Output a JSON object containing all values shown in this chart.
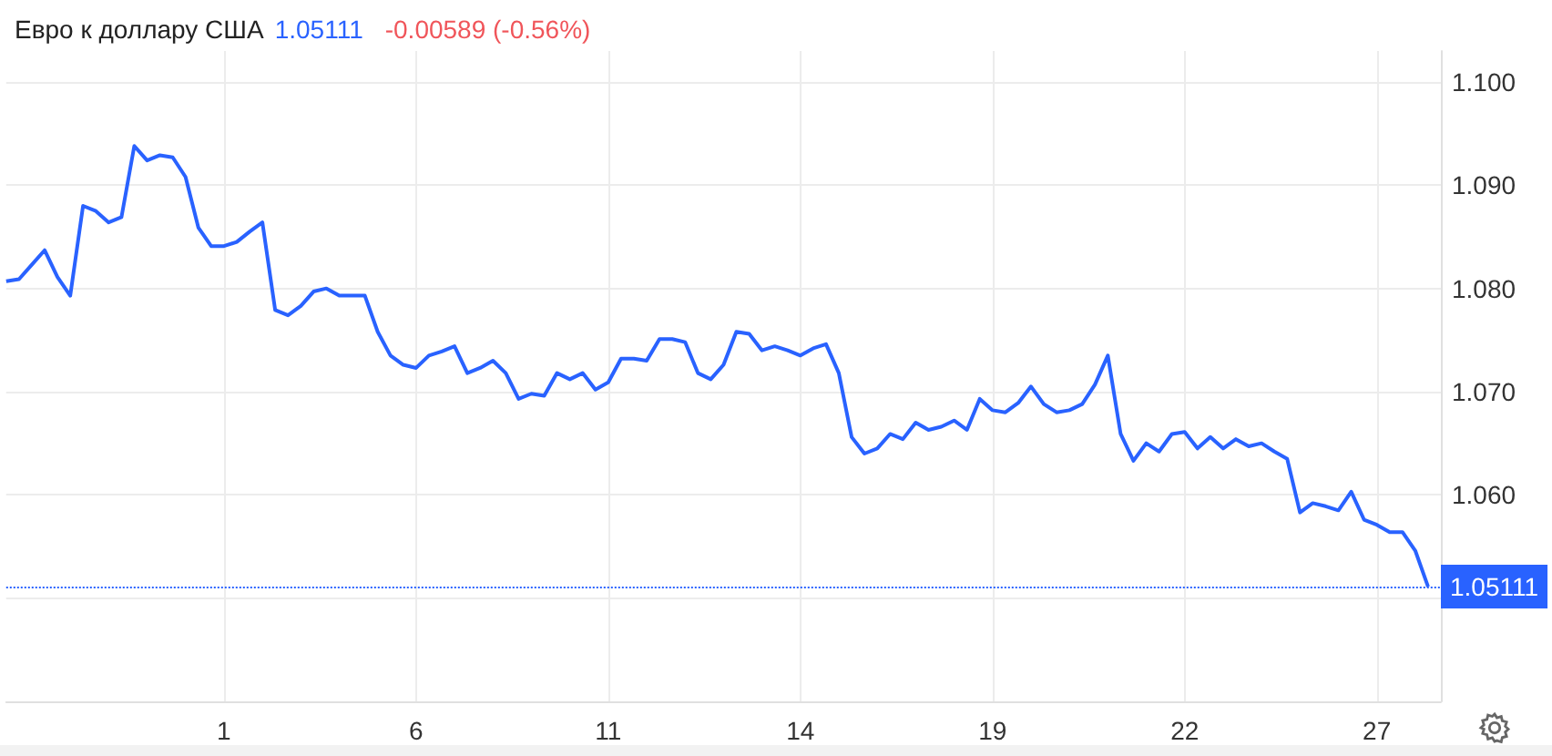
{
  "chart_data": {
    "type": "line",
    "title": "Евро к доллару США",
    "annotations": [
      "1.05111",
      "-0.00589 (-0.56%)"
    ],
    "categories": [
      null,
      null,
      null,
      null,
      null,
      null,
      null,
      null,
      null,
      null,
      null,
      null,
      null,
      null,
      null,
      null,
      null,
      "1",
      null,
      null,
      null,
      null,
      null,
      null,
      null,
      null,
      null,
      null,
      null,
      null,
      null,
      null,
      "6",
      null,
      null,
      null,
      null,
      null,
      null,
      null,
      null,
      null,
      null,
      null,
      null,
      null,
      null,
      "11",
      null,
      null,
      null,
      null,
      null,
      null,
      null,
      null,
      null,
      null,
      null,
      null,
      null,
      null,
      "14",
      null,
      null,
      null,
      null,
      null,
      null,
      null,
      null,
      null,
      null,
      null,
      null,
      null,
      null,
      "19",
      null,
      null,
      null,
      null,
      null,
      null,
      null,
      null,
      null,
      null,
      null,
      null,
      null,
      null,
      "22",
      null,
      null,
      null,
      null,
      null,
      null,
      null,
      null,
      null,
      null,
      null,
      null,
      null,
      null,
      "27",
      null,
      null,
      null,
      null,
      null
    ],
    "series": [
      {
        "color": "#2962ff",
        "values": [
          1.0807,
          1.0809,
          1.0823,
          1.0837,
          1.0811,
          1.0793,
          1.088,
          1.0875,
          1.0864,
          1.0869,
          1.0938,
          1.0924,
          1.0929,
          1.0927,
          1.0908,
          1.0859,
          1.0841,
          1.0841,
          1.0845,
          1.0855,
          1.0864,
          1.0779,
          1.0774,
          1.0783,
          1.0797,
          1.08,
          1.0793,
          1.0793,
          1.0793,
          1.0758,
          1.0735,
          1.0726,
          1.0723,
          1.0735,
          1.0739,
          1.0744,
          1.0718,
          1.0723,
          1.073,
          1.0718,
          1.0693,
          1.0698,
          1.0696,
          1.0718,
          1.0712,
          1.0718,
          1.0702,
          1.0709,
          1.0732,
          1.0732,
          1.073,
          1.0751,
          1.0751,
          1.0748,
          1.0718,
          1.0712,
          1.0726,
          1.0758,
          1.0756,
          1.074,
          1.0744,
          1.074,
          1.0735,
          1.0742,
          1.0746,
          1.0718,
          1.0656,
          1.064,
          1.0645,
          1.0659,
          1.0654,
          1.067,
          1.0663,
          1.0666,
          1.0672,
          1.0663,
          1.0693,
          1.0682,
          1.068,
          1.0689,
          1.0705,
          1.0688,
          1.068,
          1.0682,
          1.0688,
          1.0707,
          1.0735,
          1.0659,
          1.0633,
          1.065,
          1.0642,
          1.0659,
          1.0661,
          1.0645,
          1.0656,
          1.0645,
          1.0654,
          1.0647,
          1.065,
          1.0642,
          1.0635,
          1.0583,
          1.0592,
          1.0589,
          1.0585,
          1.0603,
          1.0576,
          1.0571,
          1.0564,
          1.0564,
          1.0546,
          1.05111,
          null
        ]
      }
    ],
    "ylim": [
      1.04,
      1.103
    ],
    "yticks": [
      {
        "value": 1.04,
        "label": null
      },
      {
        "value": 1.05,
        "label": null
      },
      {
        "value": 1.06,
        "label": "1.060"
      },
      {
        "value": 1.07,
        "label": "1.070"
      },
      {
        "value": 1.08,
        "label": "1.080"
      },
      {
        "value": 1.09,
        "label": "1.090"
      },
      {
        "value": 1.1,
        "label": "1.100"
      }
    ],
    "ref_lines": [
      {
        "axis": "y",
        "value": 1.05111,
        "label": "1.05111",
        "color": "#2962ff",
        "line_style": "dotted"
      }
    ],
    "grid": true,
    "marker": "none",
    "line_style": "solid"
  }
}
